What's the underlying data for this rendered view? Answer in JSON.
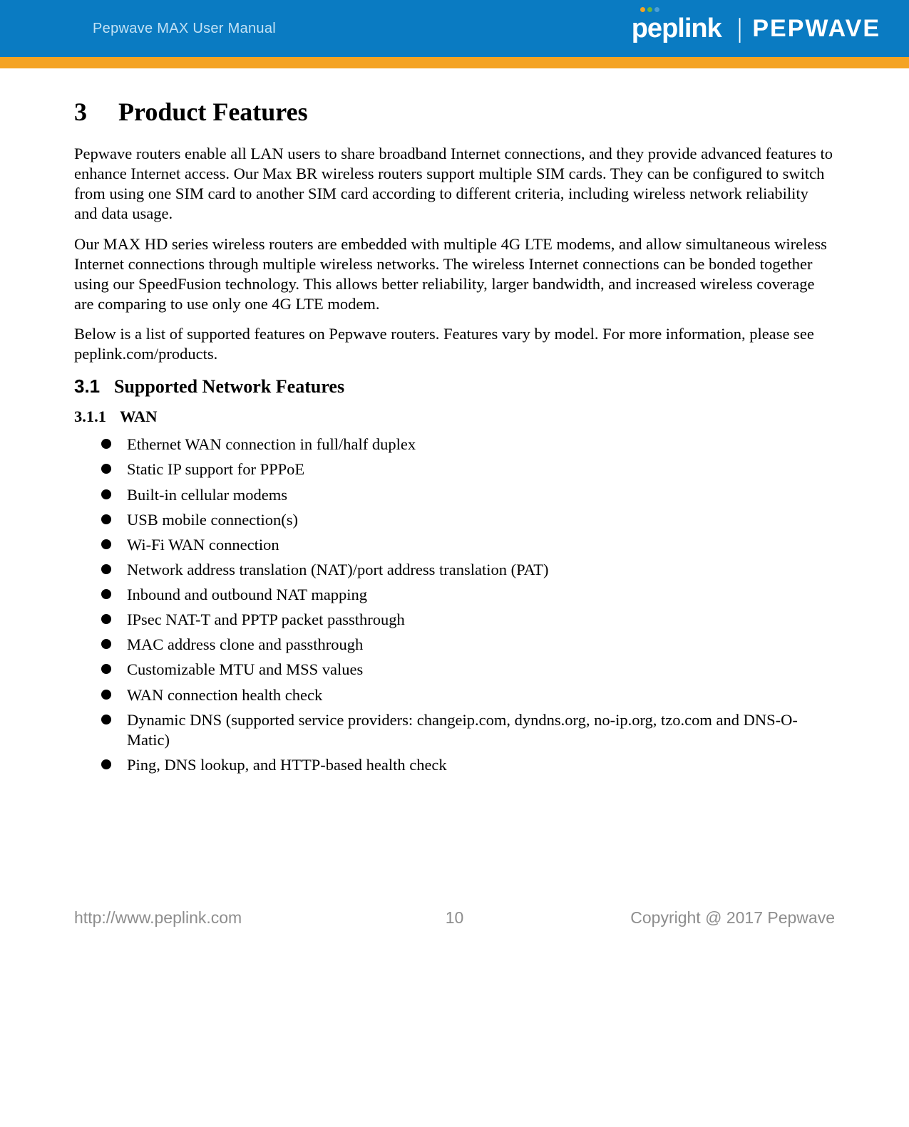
{
  "header": {
    "title": "Pepwave MAX User Manual",
    "brand_peplink": "peplink",
    "brand_pepwave": "PEPWAVE",
    "brand_divider": "|",
    "dot_colors": [
      "#f4a323",
      "#6fb53e",
      "#4a9fd8"
    ]
  },
  "colors": {
    "header_bg": "#0a7bc2",
    "orange_bar": "#f4a323",
    "header_text": "#c3e2f5",
    "brand_white": "#ffffff",
    "body_text": "#000000",
    "footer_text": "#8d8d8d"
  },
  "section": {
    "number": "3",
    "title": "Product Features"
  },
  "paragraphs": {
    "p1": "Pepwave routers enable all LAN users to share broadband Internet connections, and they provide advanced features to enhance Internet access. Our Max BR wireless routers support multiple SIM cards. They can be configured to switch from using one SIM card to another SIM card according to different criteria, including wireless network reliability and data usage.",
    "p2": "Our MAX HD series wireless routers are embedded with multiple 4G LTE modems, and allow simultaneous wireless Internet connections through multiple wireless networks. The wireless Internet connections can be bonded together using our SpeedFusion technology. This allows better reliability, larger bandwidth, and increased wireless coverage are comparing to use only one 4G LTE modem.",
    "p3": "Below is a list of supported features on Pepwave routers. Features vary by model. For more information, please see peplink.com/products."
  },
  "subsection": {
    "number": "3.1",
    "title": "Supported Network Features"
  },
  "subsubsection": {
    "number": "3.1.1",
    "title": "WAN"
  },
  "bullets": [
    "Ethernet WAN connection in full/half duplex",
    "Static IP support for PPPoE",
    "Built-in cellular modems",
    "USB mobile connection(s)",
    "Wi-Fi WAN connection",
    "Network address translation (NAT)/port address translation (PAT)",
    "Inbound and outbound NAT mapping",
    "IPsec NAT-T and PPTP packet passthrough",
    "MAC address clone and passthrough",
    "Customizable MTU and MSS values",
    "WAN connection health check",
    "Dynamic DNS (supported service providers: changeip.com, dyndns.org, no-ip.org, tzo.com and DNS-O-Matic)",
    "Ping, DNS lookup, and HTTP-based health check"
  ],
  "footer": {
    "url": "http://www.peplink.com",
    "page": "10",
    "copyright": "Copyright @ 2017 Pepwave"
  }
}
